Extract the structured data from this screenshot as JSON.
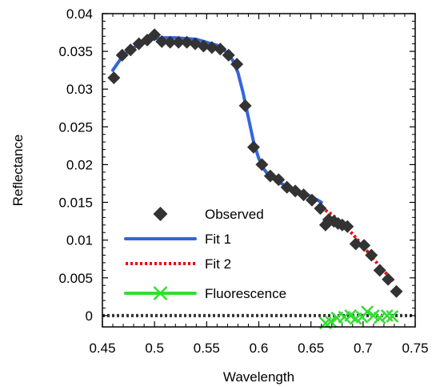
{
  "chart_data": {
    "type": "scatter",
    "xlabel": "Wavelength",
    "ylabel": "Reflectance",
    "xlim": [
      0.45,
      0.75
    ],
    "ylim": [
      -0.0015,
      0.04
    ],
    "x_ticks": [
      0.45,
      0.5,
      0.55,
      0.6,
      0.65,
      0.7,
      0.75
    ],
    "x_tick_labels": [
      "0.45",
      "0.5",
      "0.55",
      "0.6",
      "0.65",
      "0.7",
      "0.75"
    ],
    "y_ticks": [
      0,
      0.005,
      0.01,
      0.015,
      0.02,
      0.025,
      0.03,
      0.035,
      0.04
    ],
    "y_tick_labels": [
      "0",
      "0.005",
      "0.01",
      "0.015",
      "0.02",
      "0.025",
      "0.03",
      "0.035",
      "0.04"
    ],
    "grid": false,
    "legend_position": "bottom-left",
    "series": [
      {
        "name": "Observed",
        "style": "markers",
        "marker": "diamond",
        "color": "#333333",
        "x": [
          0.461,
          0.469,
          0.477,
          0.485,
          0.493,
          0.5,
          0.507,
          0.515,
          0.523,
          0.531,
          0.539,
          0.547,
          0.555,
          0.563,
          0.571,
          0.579,
          0.587,
          0.595,
          0.603,
          0.611,
          0.619,
          0.627,
          0.635,
          0.643,
          0.651,
          0.659,
          0.664,
          0.667,
          0.672,
          0.676,
          0.68,
          0.685,
          0.693,
          0.701,
          0.708,
          0.716,
          0.724,
          0.732
        ],
        "y": [
          0.0315,
          0.0345,
          0.0352,
          0.036,
          0.0365,
          0.0372,
          0.0363,
          0.0362,
          0.0362,
          0.0362,
          0.036,
          0.0357,
          0.0355,
          0.0353,
          0.0345,
          0.0333,
          0.0278,
          0.0223,
          0.02,
          0.0185,
          0.018,
          0.017,
          0.0165,
          0.016,
          0.0153,
          0.0142,
          0.012,
          0.0127,
          0.0125,
          0.0122,
          0.012,
          0.0118,
          0.0095,
          0.0093,
          0.008,
          0.006,
          0.0048,
          0.0032
        ]
      },
      {
        "name": "Fit 1",
        "style": "line",
        "color": "#3366dd",
        "x": [
          0.46,
          0.47,
          0.48,
          0.49,
          0.5,
          0.51,
          0.52,
          0.53,
          0.54,
          0.55,
          0.56,
          0.57,
          0.575,
          0.58,
          0.585,
          0.59,
          0.595,
          0.6,
          0.605,
          0.61,
          0.62,
          0.63,
          0.64,
          0.65,
          0.66
        ],
        "y": [
          0.0325,
          0.0345,
          0.0355,
          0.0362,
          0.0367,
          0.0368,
          0.0368,
          0.0367,
          0.0366,
          0.0362,
          0.0358,
          0.0348,
          0.0338,
          0.0322,
          0.0295,
          0.0262,
          0.023,
          0.0208,
          0.0194,
          0.0185,
          0.0176,
          0.0169,
          0.0163,
          0.0158,
          0.015
        ]
      },
      {
        "name": "Fit 2",
        "style": "dotted-line",
        "color": "#ee0000",
        "x": [
          0.66,
          0.67,
          0.68,
          0.69,
          0.7,
          0.71,
          0.72,
          0.73
        ],
        "y": [
          0.0143,
          0.0134,
          0.0122,
          0.0108,
          0.0092,
          0.0075,
          0.0059,
          0.0045
        ]
      },
      {
        "name": "Fluorescence",
        "style": "markers",
        "marker": "x",
        "color": "#33dd33",
        "x": [
          0.664,
          0.669,
          0.675,
          0.682,
          0.688,
          0.693,
          0.699,
          0.704,
          0.71,
          0.716,
          0.723,
          0.728
        ],
        "y": [
          -0.001,
          -0.0008,
          -0.0003,
          -0.0002,
          0.0,
          -0.0004,
          -0.0002,
          0.0005,
          0.0,
          -0.0003,
          0.0,
          -0.0001
        ]
      },
      {
        "name": "zero-line",
        "style": "dotted-line",
        "color": "#333333",
        "x": [
          0.45,
          0.75
        ],
        "y": [
          0,
          0
        ]
      }
    ]
  }
}
